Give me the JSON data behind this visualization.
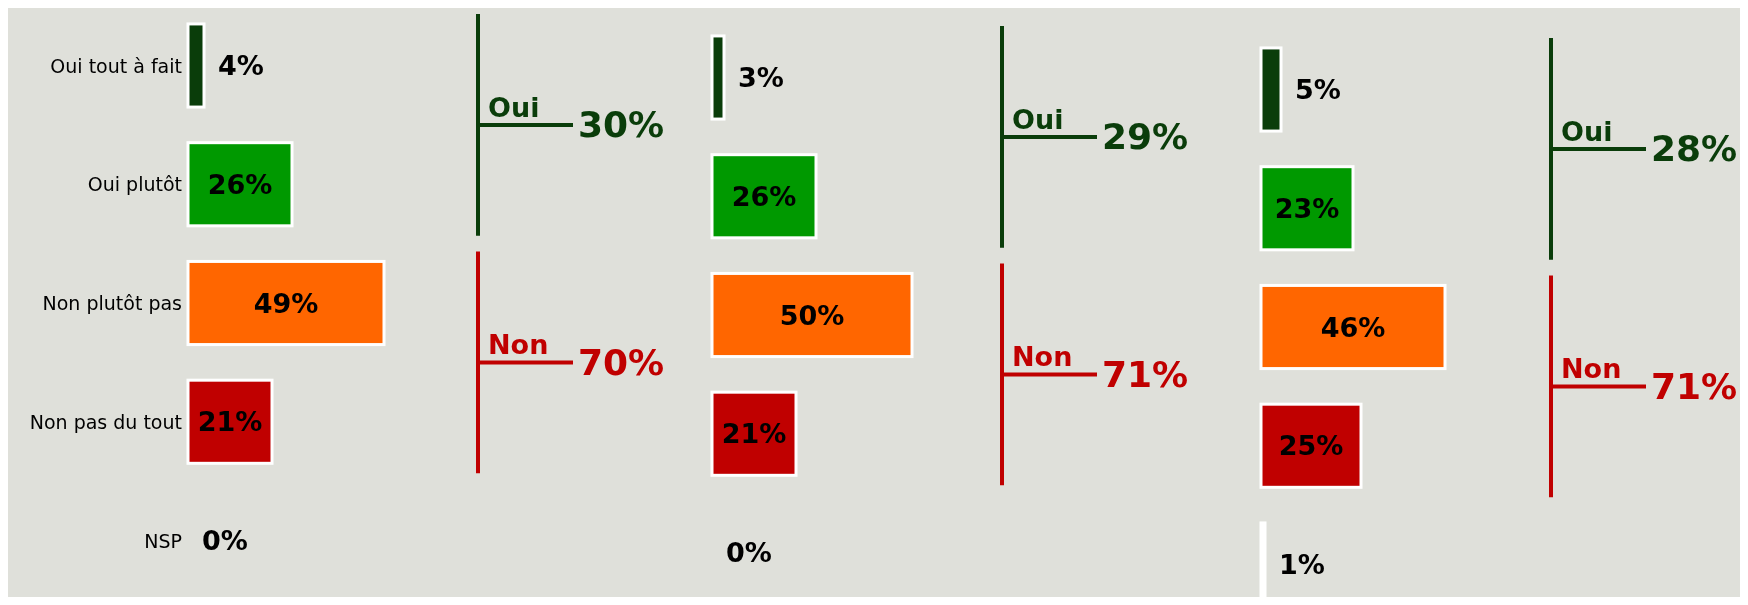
{
  "chart_data": [
    {
      "type": "bar",
      "orientation": "horizontal",
      "categories": [
        "Oui tout à fait",
        "Oui plutôt",
        "Non plutôt pas",
        "Non pas du tout",
        "NSP"
      ],
      "values": [
        4,
        26,
        49,
        21,
        0
      ],
      "value_labels": [
        "4%",
        "26%",
        "49%",
        "21%",
        "0%"
      ],
      "colors": [
        "#0a3d0a",
        "#009900",
        "#ff6600",
        "#c00000",
        "#ffffff"
      ],
      "annotations": [
        "Oui",
        "30%",
        "Non",
        "70%"
      ]
    },
    {
      "type": "bar",
      "orientation": "horizontal",
      "categories": [
        null,
        null,
        null,
        null,
        null
      ],
      "values": [
        3,
        26,
        50,
        21,
        0
      ],
      "value_labels": [
        "3%",
        "26%",
        "50%",
        "21%",
        "0%"
      ],
      "colors": [
        "#0a3d0a",
        "#009900",
        "#ff6600",
        "#c00000",
        "#ffffff"
      ],
      "annotations": [
        "Oui",
        "29%",
        "Non",
        "71%"
      ]
    },
    {
      "type": "bar",
      "orientation": "horizontal",
      "categories": [
        null,
        null,
        null,
        null,
        null
      ],
      "values": [
        5,
        23,
        46,
        25,
        1
      ],
      "value_labels": [
        "5%",
        "23%",
        "46%",
        "25%",
        "1%"
      ],
      "colors": [
        "#0a3d0a",
        "#009900",
        "#ff6600",
        "#c00000",
        "#ffffff"
      ],
      "annotations": [
        "Oui",
        "28%",
        "Non",
        "71%"
      ]
    }
  ]
}
